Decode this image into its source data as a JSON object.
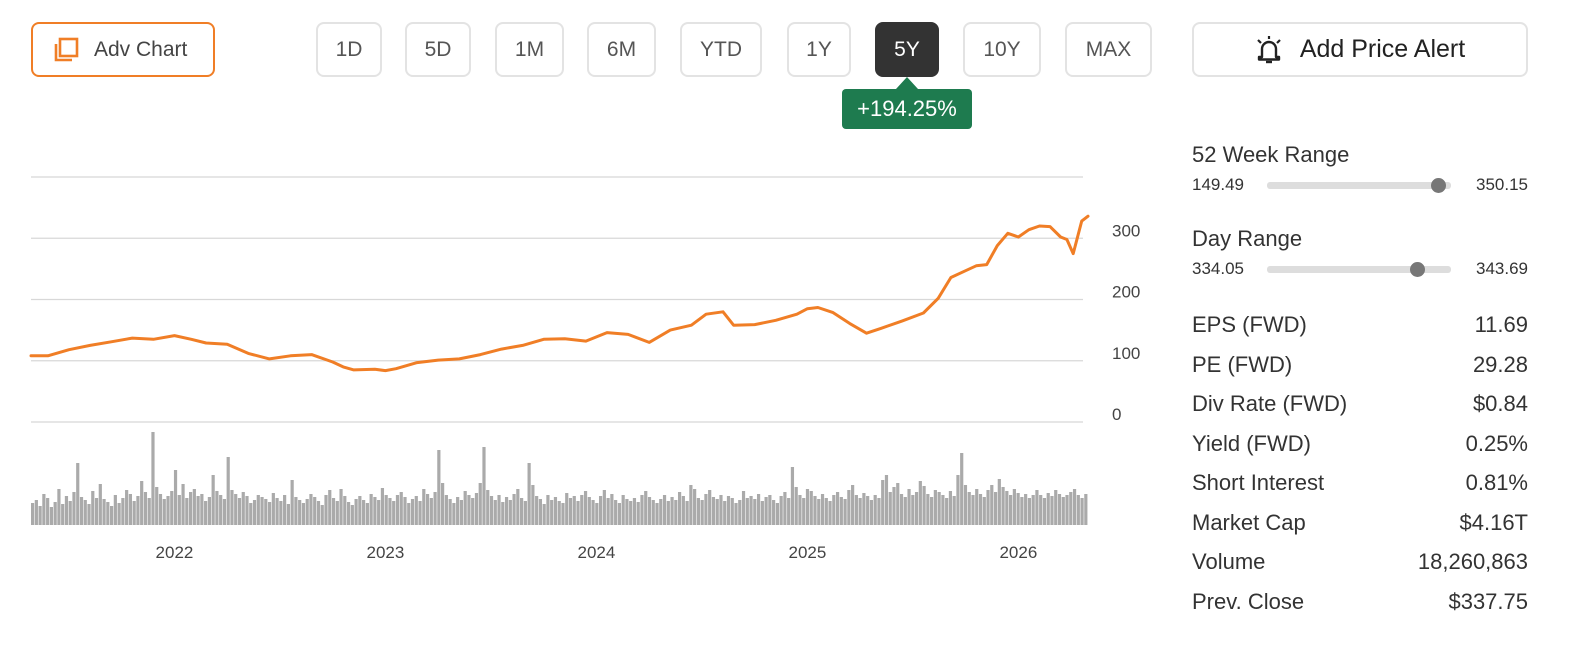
{
  "toolbar": {
    "adv_chart_label": "Adv Chart",
    "periods": [
      "1D",
      "5D",
      "1M",
      "6M",
      "YTD",
      "1Y",
      "5Y",
      "10Y",
      "MAX"
    ],
    "active_period": "5Y",
    "add_alert_label": "Add Price Alert",
    "change_badge": "+194.25%",
    "colors": {
      "accent": "#f07e26",
      "active_bg": "#333333",
      "positive": "#1e7b4f"
    }
  },
  "chart_data": {
    "type": "line",
    "title": "",
    "xlabel": "",
    "ylabel": "",
    "line_color": "#f07e26",
    "volume_color": "#aaaaaa",
    "grid": true,
    "y_axis_position": "right",
    "ylim": [
      0,
      400
    ],
    "yticks": [
      0,
      100,
      200,
      300
    ],
    "x_range": [
      2021.32,
      2026.33
    ],
    "x_ticks": [
      {
        "label": "2022",
        "x": 2022.0
      },
      {
        "label": "2023",
        "x": 2023.0
      },
      {
        "label": "2024",
        "x": 2024.0
      },
      {
        "label": "2025",
        "x": 2025.0
      },
      {
        "label": "2026",
        "x": 2026.0
      }
    ],
    "series": [
      {
        "x": [
          2021.32,
          2021.4,
          2021.5,
          2021.6,
          2021.7,
          2021.8,
          2021.9,
          2022.0,
          2022.08,
          2022.15,
          2022.25,
          2022.35,
          2022.45,
          2022.55,
          2022.65,
          2022.75,
          2022.8,
          2022.85,
          2022.95,
          2023.0,
          2023.05,
          2023.15,
          2023.25,
          2023.35,
          2023.45,
          2023.55,
          2023.65,
          2023.75,
          2023.85,
          2023.95,
          2024.05,
          2024.15,
          2024.25,
          2024.35,
          2024.45,
          2024.52,
          2024.6,
          2024.65,
          2024.75,
          2024.85,
          2024.95,
          2025.0,
          2025.05,
          2025.12,
          2025.2,
          2025.28,
          2025.35,
          2025.45,
          2025.55,
          2025.62,
          2025.68,
          2025.75,
          2025.8,
          2025.85,
          2025.9,
          2025.95,
          2026.0,
          2026.05,
          2026.1,
          2026.15,
          2026.2,
          2026.23,
          2026.26,
          2026.3,
          2026.33
        ],
        "y": [
          108,
          108,
          118,
          125,
          131,
          137,
          135,
          141,
          135,
          129,
          127,
          112,
          103,
          108,
          110,
          98,
          90,
          85,
          86,
          84,
          87,
          97,
          101,
          103,
          110,
          119,
          125,
          135,
          136,
          132,
          146,
          143,
          130,
          150,
          158,
          176,
          180,
          158,
          159,
          166,
          176,
          185,
          187,
          179,
          161,
          145,
          153,
          165,
          178,
          202,
          236,
          247,
          255,
          257,
          288,
          308,
          302,
          314,
          320,
          319,
          302,
          298,
          275,
          328,
          336
        ]
      }
    ],
    "volume_relative": [
      0.22,
      0.25,
      0.19,
      0.31,
      0.27,
      0.18,
      0.23,
      0.36,
      0.21,
      0.29,
      0.24,
      0.33,
      0.62,
      0.28,
      0.25,
      0.21,
      0.34,
      0.27,
      0.41,
      0.26,
      0.23,
      0.19,
      0.3,
      0.22,
      0.27,
      0.35,
      0.31,
      0.24,
      0.29,
      0.44,
      0.33,
      0.27,
      0.93,
      0.38,
      0.31,
      0.26,
      0.29,
      0.34,
      0.55,
      0.3,
      0.41,
      0.27,
      0.33,
      0.36,
      0.29,
      0.31,
      0.24,
      0.28,
      0.5,
      0.34,
      0.3,
      0.26,
      0.68,
      0.35,
      0.31,
      0.27,
      0.33,
      0.29,
      0.22,
      0.25,
      0.3,
      0.28,
      0.26,
      0.23,
      0.32,
      0.27,
      0.24,
      0.3,
      0.21,
      0.45,
      0.28,
      0.25,
      0.22,
      0.26,
      0.31,
      0.28,
      0.24,
      0.2,
      0.3,
      0.35,
      0.27,
      0.24,
      0.36,
      0.29,
      0.23,
      0.2,
      0.26,
      0.29,
      0.25,
      0.22,
      0.31,
      0.28,
      0.25,
      0.37,
      0.3,
      0.27,
      0.24,
      0.3,
      0.33,
      0.28,
      0.22,
      0.26,
      0.29,
      0.24,
      0.36,
      0.31,
      0.27,
      0.33,
      0.75,
      0.42,
      0.3,
      0.26,
      0.22,
      0.28,
      0.25,
      0.34,
      0.3,
      0.27,
      0.32,
      0.42,
      0.78,
      0.35,
      0.29,
      0.25,
      0.3,
      0.23,
      0.28,
      0.25,
      0.31,
      0.36,
      0.27,
      0.24,
      0.62,
      0.4,
      0.29,
      0.26,
      0.21,
      0.3,
      0.25,
      0.28,
      0.24,
      0.22,
      0.32,
      0.27,
      0.29,
      0.24,
      0.3,
      0.34,
      0.28,
      0.25,
      0.22,
      0.29,
      0.35,
      0.27,
      0.31,
      0.25,
      0.22,
      0.3,
      0.26,
      0.24,
      0.27,
      0.23,
      0.3,
      0.34,
      0.28,
      0.25,
      0.22,
      0.26,
      0.3,
      0.24,
      0.28,
      0.25,
      0.33,
      0.29,
      0.24,
      0.4,
      0.36,
      0.27,
      0.25,
      0.31,
      0.35,
      0.28,
      0.26,
      0.3,
      0.24,
      0.29,
      0.27,
      0.22,
      0.25,
      0.34,
      0.27,
      0.29,
      0.26,
      0.31,
      0.24,
      0.28,
      0.3,
      0.25,
      0.22,
      0.29,
      0.33,
      0.27,
      0.58,
      0.38,
      0.3,
      0.27,
      0.36,
      0.34,
      0.29,
      0.26,
      0.31,
      0.27,
      0.24,
      0.3,
      0.33,
      0.28,
      0.26,
      0.35,
      0.4,
      0.3,
      0.27,
      0.32,
      0.29,
      0.25,
      0.3,
      0.27,
      0.45,
      0.5,
      0.33,
      0.38,
      0.42,
      0.31,
      0.28,
      0.36,
      0.3,
      0.33,
      0.44,
      0.39,
      0.31,
      0.28,
      0.35,
      0.33,
      0.3,
      0.27,
      0.34,
      0.29,
      0.5,
      0.72,
      0.4,
      0.33,
      0.3,
      0.36,
      0.31,
      0.28,
      0.35,
      0.4,
      0.33,
      0.46,
      0.38,
      0.34,
      0.3,
      0.36,
      0.32,
      0.28,
      0.31,
      0.27,
      0.3,
      0.35,
      0.3,
      0.27,
      0.32,
      0.29,
      0.35,
      0.31,
      0.28,
      0.3,
      0.33,
      0.36,
      0.3,
      0.27,
      0.31
    ]
  },
  "panel": {
    "week52": {
      "title": "52 Week Range",
      "low": "149.49",
      "high": "350.15",
      "position": 0.93
    },
    "day": {
      "title": "Day Range",
      "low": "334.05",
      "high": "343.69",
      "position": 0.82
    },
    "stats": [
      {
        "label": "EPS (FWD)",
        "value": "11.69"
      },
      {
        "label": "PE (FWD)",
        "value": "29.28"
      },
      {
        "label": "Div Rate (FWD)",
        "value": "$0.84"
      },
      {
        "label": "Yield (FWD)",
        "value": "0.25%"
      },
      {
        "label": "Short Interest",
        "value": "0.81%"
      },
      {
        "label": "Market Cap",
        "value": "$4.16T"
      },
      {
        "label": "Volume",
        "value": "18,260,863"
      },
      {
        "label": "Prev. Close",
        "value": "$337.75"
      }
    ]
  }
}
